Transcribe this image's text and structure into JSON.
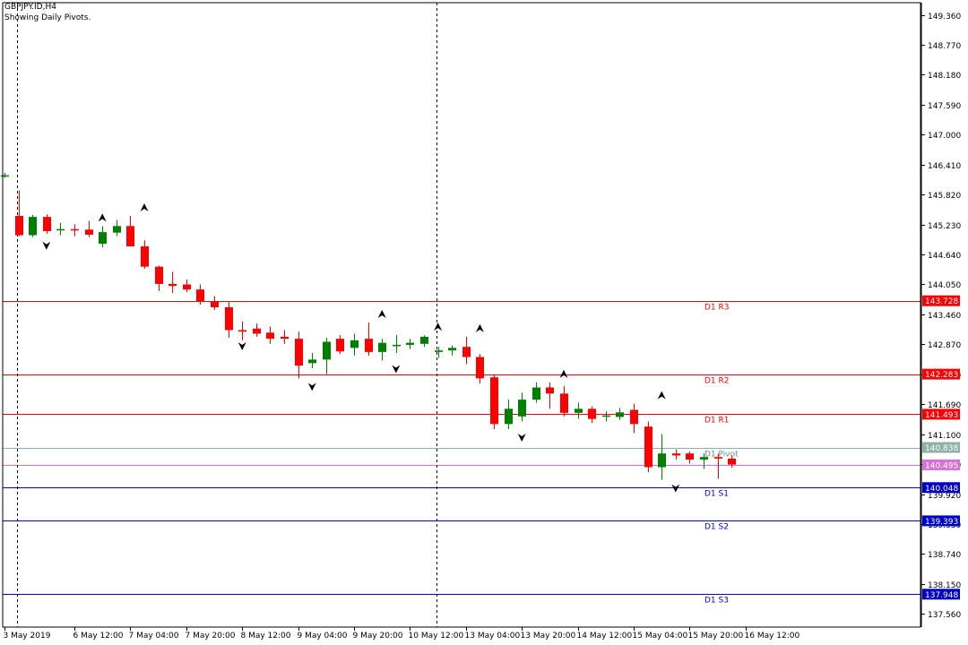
{
  "header": {
    "symbol": "GBPJPY.ID,H4",
    "indicator": "Showing Daily Pivots."
  },
  "colors": {
    "bull": "#008000",
    "bear": "#ff0000",
    "resistance": "#ff0000",
    "pivot": "#8fb0a8",
    "support": "#0000cd",
    "current_price": "#da70d6",
    "fractal": "#000000",
    "grid_vline": "#000000"
  },
  "chart_data": {
    "type": "candlestick",
    "title": "GBPJPY.ID,H4",
    "subtitle": "Showing Daily Pivots.",
    "ylim": [
      137.3,
      149.6
    ],
    "grid": false,
    "y_ticks": [
      "149.360",
      "148.770",
      "148.180",
      "147.590",
      "147.000",
      "146.410",
      "145.820",
      "145.230",
      "144.640",
      "144.050",
      "143.460",
      "142.870",
      "142.280",
      "141.690",
      "141.100",
      "140.510",
      "139.920",
      "139.330",
      "138.740",
      "138.150",
      "137.560"
    ],
    "x_labels": [
      {
        "label": "3 May 2019",
        "bar": 0
      },
      {
        "label": "6 May 12:00",
        "bar": 5
      },
      {
        "label": "7 May 04:00",
        "bar": 9
      },
      {
        "label": "7 May 20:00",
        "bar": 13
      },
      {
        "label": "8 May 12:00",
        "bar": 17
      },
      {
        "label": "9 May 04:00",
        "bar": 21
      },
      {
        "label": "9 May 20:00",
        "bar": 25
      },
      {
        "label": "10 May 12:00",
        "bar": 29
      },
      {
        "label": "13 May 04:00",
        "bar": 33
      },
      {
        "label": "13 May 20:00",
        "bar": 37
      },
      {
        "label": "14 May 12:00",
        "bar": 41
      },
      {
        "label": "15 May 04:00",
        "bar": 45
      },
      {
        "label": "15 May 20:00",
        "bar": 49
      },
      {
        "label": "16 May 12:00",
        "bar": 53
      }
    ],
    "day_separators": [
      1,
      31
    ],
    "pivot_levels": [
      {
        "name": "D1 R3",
        "value": 143.728,
        "label": "143.728",
        "kind": "resistance"
      },
      {
        "name": "D1 R2",
        "value": 142.283,
        "label": "142.283",
        "kind": "resistance"
      },
      {
        "name": "D1 R1",
        "value": 141.493,
        "label": "141.493",
        "kind": "resistance"
      },
      {
        "name": "D1 Pivot",
        "value": 140.838,
        "label": "140.838",
        "kind": "pivot"
      },
      {
        "name": "D1 S1",
        "value": 140.048,
        "label": "140.048",
        "kind": "support"
      },
      {
        "name": "D1 S2",
        "value": 139.393,
        "label": "139.393",
        "kind": "support"
      },
      {
        "name": "D1 S3",
        "value": 137.948,
        "label": "137.948",
        "kind": "support"
      }
    ],
    "current_price": {
      "value": 140.495,
      "label": "140.495"
    },
    "candles": [
      {
        "o": 146.2,
        "h": 146.25,
        "l": 146.15,
        "c": 146.2
      },
      {
        "o": 145.4,
        "h": 145.9,
        "l": 145.0,
        "c": 145.02
      },
      {
        "o": 145.02,
        "h": 145.42,
        "l": 144.98,
        "c": 145.38
      },
      {
        "o": 145.38,
        "h": 145.43,
        "l": 145.05,
        "c": 145.1
      },
      {
        "o": 145.12,
        "h": 145.26,
        "l": 145.02,
        "c": 145.14
      },
      {
        "o": 145.14,
        "h": 145.24,
        "l": 145.0,
        "c": 145.12
      },
      {
        "o": 145.13,
        "h": 145.3,
        "l": 144.98,
        "c": 145.03
      },
      {
        "o": 144.85,
        "h": 145.2,
        "l": 144.78,
        "c": 145.08
      },
      {
        "o": 145.07,
        "h": 145.32,
        "l": 145.0,
        "c": 145.2
      },
      {
        "o": 145.2,
        "h": 145.4,
        "l": 144.85,
        "c": 144.8
      },
      {
        "o": 144.8,
        "h": 144.92,
        "l": 144.36,
        "c": 144.4
      },
      {
        "o": 144.4,
        "h": 144.42,
        "l": 143.92,
        "c": 144.06
      },
      {
        "o": 144.06,
        "h": 144.3,
        "l": 143.88,
        "c": 144.02
      },
      {
        "o": 144.05,
        "h": 144.15,
        "l": 143.9,
        "c": 143.95
      },
      {
        "o": 143.95,
        "h": 144.05,
        "l": 143.65,
        "c": 143.72
      },
      {
        "o": 143.72,
        "h": 143.82,
        "l": 143.55,
        "c": 143.6
      },
      {
        "o": 143.6,
        "h": 143.7,
        "l": 143.0,
        "c": 143.15
      },
      {
        "o": 143.15,
        "h": 143.32,
        "l": 142.95,
        "c": 143.12
      },
      {
        "o": 143.18,
        "h": 143.28,
        "l": 143.02,
        "c": 143.08
      },
      {
        "o": 143.1,
        "h": 143.22,
        "l": 142.88,
        "c": 142.98
      },
      {
        "o": 143.02,
        "h": 143.15,
        "l": 142.88,
        "c": 142.98
      },
      {
        "o": 142.98,
        "h": 143.12,
        "l": 142.2,
        "c": 142.45
      },
      {
        "o": 142.5,
        "h": 142.7,
        "l": 142.4,
        "c": 142.57
      },
      {
        "o": 142.57,
        "h": 143.0,
        "l": 142.28,
        "c": 142.92
      },
      {
        "o": 142.98,
        "h": 143.05,
        "l": 142.68,
        "c": 142.73
      },
      {
        "o": 142.8,
        "h": 143.08,
        "l": 142.65,
        "c": 142.95
      },
      {
        "o": 142.98,
        "h": 143.3,
        "l": 142.65,
        "c": 142.72
      },
      {
        "o": 142.72,
        "h": 142.98,
        "l": 142.55,
        "c": 142.9
      },
      {
        "o": 142.85,
        "h": 143.05,
        "l": 142.7,
        "c": 142.86
      },
      {
        "o": 142.86,
        "h": 142.98,
        "l": 142.78,
        "c": 142.9
      },
      {
        "o": 142.88,
        "h": 143.05,
        "l": 142.82,
        "c": 143.02
      },
      {
        "o": 142.72,
        "h": 142.82,
        "l": 142.6,
        "c": 142.75
      },
      {
        "o": 142.75,
        "h": 142.85,
        "l": 142.65,
        "c": 142.8
      },
      {
        "o": 142.82,
        "h": 143.02,
        "l": 142.48,
        "c": 142.62
      },
      {
        "o": 142.62,
        "h": 142.68,
        "l": 142.1,
        "c": 142.2
      },
      {
        "o": 142.22,
        "h": 142.28,
        "l": 141.2,
        "c": 141.3
      },
      {
        "o": 141.3,
        "h": 141.78,
        "l": 141.2,
        "c": 141.6
      },
      {
        "o": 141.45,
        "h": 141.92,
        "l": 141.35,
        "c": 141.78
      },
      {
        "o": 141.78,
        "h": 142.12,
        "l": 141.72,
        "c": 142.02
      },
      {
        "o": 142.02,
        "h": 142.12,
        "l": 141.6,
        "c": 141.9
      },
      {
        "o": 141.9,
        "h": 142.05,
        "l": 141.45,
        "c": 141.52
      },
      {
        "o": 141.52,
        "h": 141.72,
        "l": 141.4,
        "c": 141.6
      },
      {
        "o": 141.6,
        "h": 141.65,
        "l": 141.32,
        "c": 141.4
      },
      {
        "o": 141.45,
        "h": 141.55,
        "l": 141.35,
        "c": 141.47
      },
      {
        "o": 141.44,
        "h": 141.62,
        "l": 141.38,
        "c": 141.53
      },
      {
        "o": 141.58,
        "h": 141.7,
        "l": 141.12,
        "c": 141.3
      },
      {
        "o": 141.25,
        "h": 141.35,
        "l": 140.35,
        "c": 140.45
      },
      {
        "o": 140.45,
        "h": 141.1,
        "l": 140.2,
        "c": 140.72
      },
      {
        "o": 140.72,
        "h": 140.8,
        "l": 140.6,
        "c": 140.68
      },
      {
        "o": 140.72,
        "h": 140.76,
        "l": 140.52,
        "c": 140.6
      },
      {
        "o": 140.6,
        "h": 140.72,
        "l": 140.42,
        "c": 140.65
      },
      {
        "o": 140.65,
        "h": 140.72,
        "l": 140.22,
        "c": 140.62
      },
      {
        "o": 140.62,
        "h": 140.68,
        "l": 140.44,
        "c": 140.5
      }
    ],
    "fractals_up": [
      {
        "bar": 7,
        "value": 145.2
      },
      {
        "bar": 10,
        "value": 145.4
      },
      {
        "bar": 27,
        "value": 143.3
      },
      {
        "bar": 31,
        "value": 143.05
      },
      {
        "bar": 34,
        "value": 143.02
      },
      {
        "bar": 40,
        "value": 142.12
      },
      {
        "bar": 47,
        "value": 141.7
      }
    ],
    "fractals_down": [
      {
        "bar": 3,
        "value": 144.98
      },
      {
        "bar": 17,
        "value": 143.0
      },
      {
        "bar": 22,
        "value": 142.2
      },
      {
        "bar": 28,
        "value": 142.55
      },
      {
        "bar": 37,
        "value": 141.2
      },
      {
        "bar": 48,
        "value": 140.2
      }
    ]
  }
}
